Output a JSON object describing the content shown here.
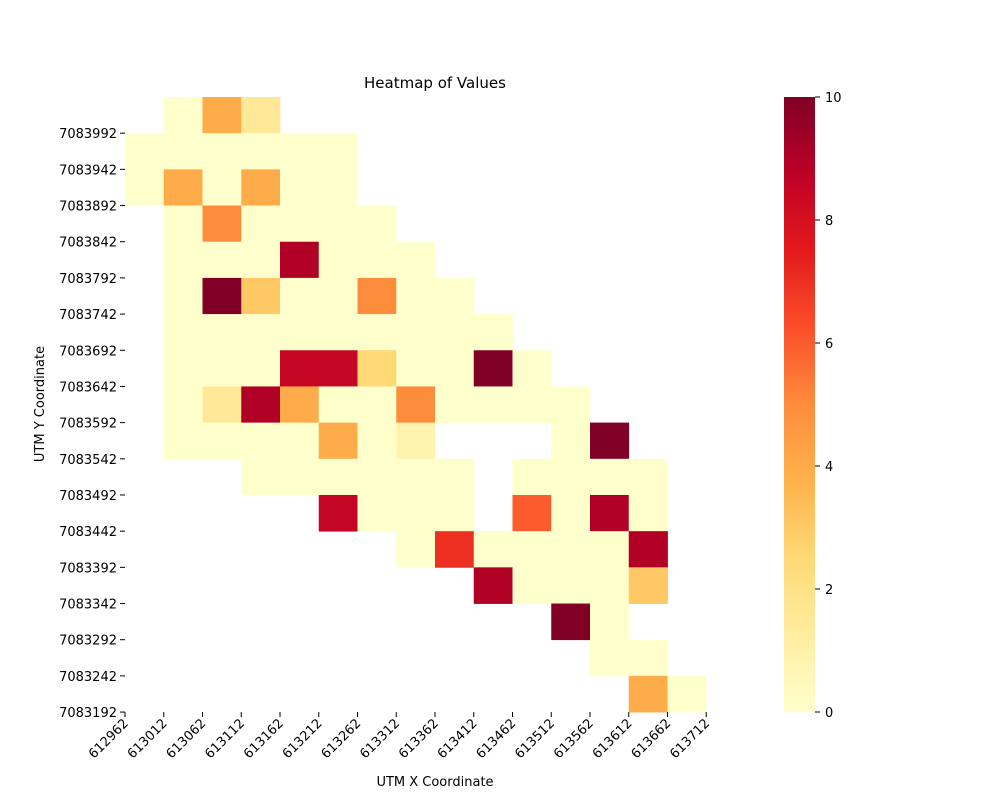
{
  "chart_data": {
    "type": "heatmap",
    "title": "Heatmap of Values",
    "xlabel": "UTM X Coordinate",
    "ylabel": "UTM Y Coordinate",
    "x_tick_labels": [
      "612962",
      "613012",
      "613062",
      "613112",
      "613162",
      "613212",
      "613262",
      "613312",
      "613362",
      "613412",
      "613462",
      "613512",
      "613562",
      "613612",
      "613662",
      "613712"
    ],
    "y_tick_labels": [
      "7083992",
      "7083942",
      "7083892",
      "7083842",
      "7083792",
      "7083742",
      "7083692",
      "7083642",
      "7083592",
      "7083542",
      "7083492",
      "7083442",
      "7083392",
      "7083342",
      "7083292",
      "7083242",
      "7083192"
    ],
    "colorbar": {
      "min": 0,
      "max": 10,
      "ticks": [
        "0",
        "2",
        "4",
        "6",
        "8",
        "10"
      ],
      "colormap": "YlOrRd",
      "stops": [
        "#ffffcc",
        "#ffeda0",
        "#fed976",
        "#feb24c",
        "#fd8d3c",
        "#fc4e2a",
        "#e31a1c",
        "#bd0026",
        "#800026"
      ]
    },
    "cells": [
      [
        null,
        0,
        4,
        1.5,
        null,
        null,
        null,
        null,
        null,
        null,
        null,
        null,
        null,
        null,
        null,
        null
      ],
      [
        0,
        0,
        0,
        0,
        0,
        0,
        null,
        null,
        null,
        null,
        null,
        null,
        null,
        null,
        null,
        null
      ],
      [
        0,
        4,
        0,
        4,
        0,
        0,
        null,
        null,
        null,
        null,
        null,
        null,
        null,
        null,
        null,
        null
      ],
      [
        null,
        0,
        5,
        0,
        0,
        0,
        0,
        null,
        null,
        null,
        null,
        null,
        null,
        null,
        null,
        null
      ],
      [
        null,
        0,
        0,
        0,
        9,
        0,
        0,
        0,
        null,
        null,
        null,
        null,
        null,
        null,
        null,
        null
      ],
      [
        null,
        0,
        10,
        3,
        0,
        0,
        5,
        0,
        0,
        null,
        null,
        null,
        null,
        null,
        null,
        null
      ],
      [
        null,
        0,
        0,
        0,
        0,
        0,
        0,
        0,
        0,
        0,
        null,
        null,
        null,
        null,
        null,
        null
      ],
      [
        null,
        0,
        0,
        0,
        8.5,
        8.5,
        2.5,
        0,
        0,
        10,
        0,
        null,
        null,
        null,
        null,
        null
      ],
      [
        null,
        0,
        1.5,
        9,
        4,
        0,
        0,
        5,
        0,
        0,
        0,
        0,
        null,
        null,
        null,
        null
      ],
      [
        null,
        0,
        0,
        0,
        0,
        4,
        0,
        0.8,
        null,
        null,
        null,
        0,
        10,
        null,
        null,
        null
      ],
      [
        null,
        null,
        null,
        0,
        0,
        0,
        0,
        0,
        0,
        null,
        0,
        0,
        0,
        0,
        null,
        null
      ],
      [
        null,
        null,
        null,
        null,
        null,
        8.5,
        0,
        0,
        0,
        null,
        6,
        0,
        9,
        0,
        null,
        null
      ],
      [
        null,
        null,
        null,
        null,
        null,
        null,
        null,
        0,
        7,
        0,
        0,
        0,
        0,
        9,
        null,
        null
      ],
      [
        null,
        null,
        null,
        null,
        null,
        null,
        null,
        null,
        null,
        9,
        0,
        0,
        0,
        3,
        null,
        null
      ],
      [
        null,
        null,
        null,
        null,
        null,
        null,
        null,
        null,
        null,
        null,
        null,
        10,
        0,
        null,
        null,
        null
      ],
      [
        null,
        null,
        null,
        null,
        null,
        null,
        null,
        null,
        null,
        null,
        null,
        null,
        0,
        0,
        null,
        null
      ],
      [
        null,
        null,
        null,
        null,
        null,
        null,
        null,
        null,
        null,
        null,
        null,
        null,
        null,
        4,
        0,
        null
      ]
    ]
  }
}
